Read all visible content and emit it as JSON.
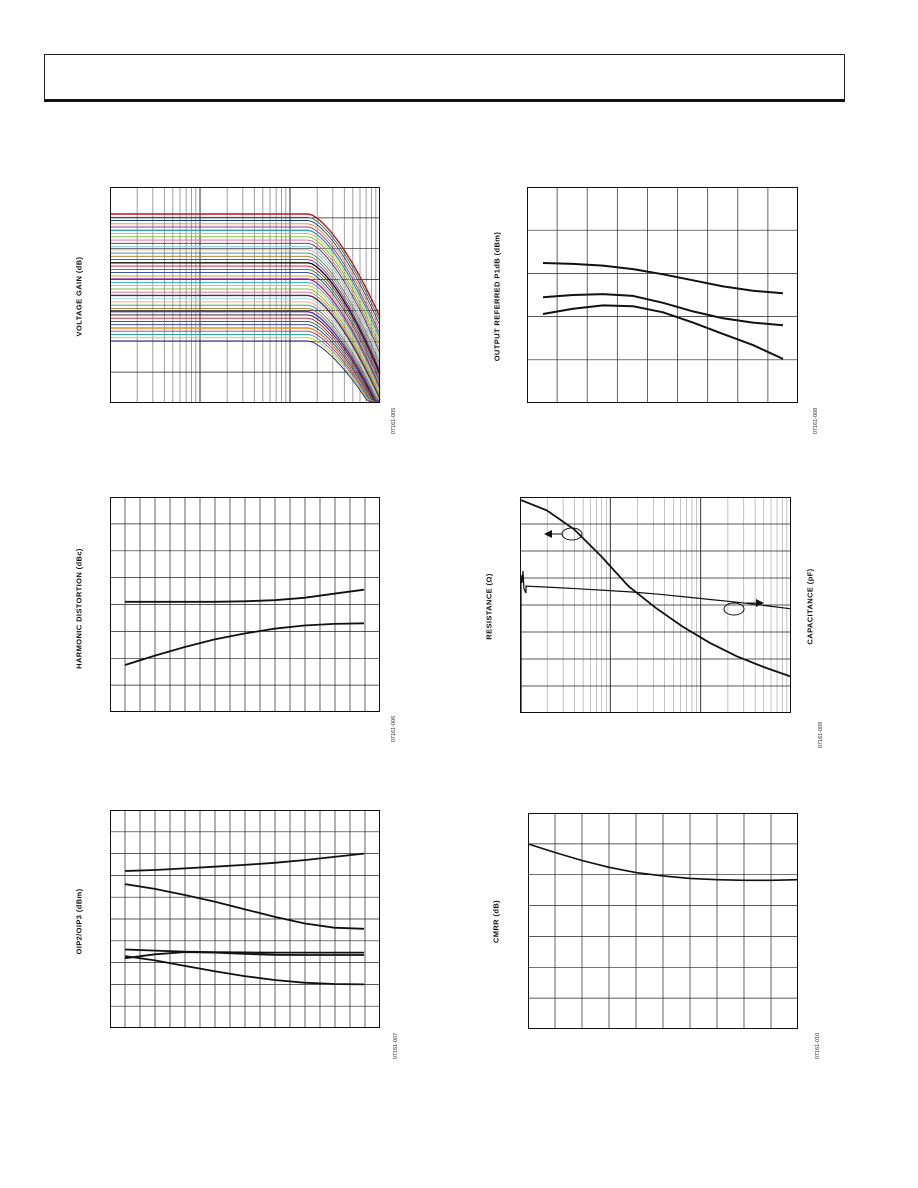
{
  "header": {
    "text": ""
  },
  "colors": {
    "ink": "#111111",
    "grid": "#222222",
    "minor_grid": "#888888"
  },
  "panels": {
    "voltage_gain": {
      "ylabel": "VOLTAGE GAIN (dB)",
      "code": "07161-005"
    },
    "p1db": {
      "ylabel": "OUTPUT REFERRED P1dB (dBm)",
      "code": "07161-008"
    },
    "hd": {
      "ylabel": "HARMONIC DISTORTION (dBc)",
      "code": "07161-006"
    },
    "res_cap": {
      "ylabel": "RESISTANCE (Ω)",
      "ylabel_right": "CAPACITANCE (pF)",
      "code": "07161-009"
    },
    "oip": {
      "ylabel": "OIP2/OIP3 (dBm)",
      "code": "07161-007"
    },
    "cmrr": {
      "ylabel": "CMRR (dB)",
      "code": "07161-010"
    }
  },
  "chart_data": [
    {
      "id": "voltage_gain",
      "type": "line",
      "title": "",
      "xlabel": "",
      "ylabel": "VOLTAGE GAIN (dB)",
      "x_scale": "log",
      "grid": true,
      "series_count": 40,
      "series_top_level": 1.0,
      "series_bottom_level": 0.0,
      "rolloff_start": 0.74,
      "note": "family of gain curves, flat then rolling off at high frequency"
    },
    {
      "id": "p1db",
      "type": "line",
      "ylabel": "OUTPUT REFERRED P1dB (dBm)",
      "grid": true,
      "x": [
        0,
        1,
        2,
        3,
        4,
        5,
        6,
        7,
        8
      ],
      "series": [
        {
          "values": [
            3.24,
            3.22,
            3.18,
            3.1,
            2.98,
            2.84,
            2.7,
            2.6,
            2.54
          ]
        },
        {
          "values": [
            2.45,
            2.5,
            2.52,
            2.48,
            2.32,
            2.12,
            1.96,
            1.86,
            1.8
          ]
        },
        {
          "values": [
            2.06,
            2.18,
            2.26,
            2.24,
            2.1,
            1.86,
            1.6,
            1.34,
            1.02
          ]
        }
      ],
      "ylim": [
        0,
        5
      ]
    },
    {
      "id": "hd",
      "type": "line",
      "ylabel": "HARMONIC DISTORTION (dBc)",
      "grid": true,
      "x": [
        0,
        1,
        2,
        3,
        4,
        5,
        6,
        7,
        8
      ],
      "series": [
        {
          "values": [
            4.1,
            4.1,
            4.1,
            4.1,
            4.12,
            4.16,
            4.25,
            4.4,
            4.55
          ]
        },
        {
          "values": [
            1.75,
            2.1,
            2.42,
            2.7,
            2.92,
            3.1,
            3.22,
            3.28,
            3.3
          ]
        }
      ],
      "ylim": [
        0,
        8
      ]
    },
    {
      "id": "res_cap",
      "type": "line",
      "ylabel": "RESISTANCE (Ω)",
      "y2label": "CAPACITANCE (pF)",
      "grid": true,
      "x_scale": "log",
      "series": [
        {
          "name_axis": "left",
          "values": [
            7.9,
            7.5,
            6.8,
            5.8,
            4.7,
            3.9,
            3.2,
            2.6,
            2.1,
            1.7,
            1.35
          ]
        },
        {
          "name_axis": "right",
          "values": [
            4.7,
            4.65,
            4.6,
            4.54,
            4.48,
            4.4,
            4.3,
            4.2,
            4.1,
            3.98,
            3.86
          ]
        }
      ],
      "ylim": [
        0,
        8
      ]
    },
    {
      "id": "oip",
      "type": "line",
      "ylabel": "OIP2/OIP3 (dBm)",
      "grid": true,
      "x": [
        0,
        1,
        2,
        3,
        4,
        5,
        6,
        7,
        8
      ],
      "series": [
        {
          "values": [
            7.2,
            7.25,
            7.32,
            7.4,
            7.48,
            7.58,
            7.7,
            7.85,
            8.0
          ]
        },
        {
          "values": [
            6.6,
            6.38,
            6.1,
            5.8,
            5.45,
            5.1,
            4.8,
            4.6,
            4.55
          ]
        },
        {
          "values": [
            3.6,
            3.55,
            3.5,
            3.48,
            3.47,
            3.46,
            3.46,
            3.46,
            3.46
          ]
        },
        {
          "values": [
            3.2,
            3.38,
            3.48,
            3.46,
            3.4,
            3.36,
            3.35,
            3.35,
            3.35
          ]
        },
        {
          "values": [
            3.3,
            3.1,
            2.85,
            2.6,
            2.38,
            2.2,
            2.08,
            2.02,
            2.0
          ]
        }
      ],
      "ylim": [
        0,
        10
      ]
    },
    {
      "id": "cmrr",
      "type": "line",
      "ylabel": "CMRR (dB)",
      "grid": true,
      "x": [
        0,
        1,
        2,
        3,
        4,
        5,
        6,
        7,
        8,
        9,
        10
      ],
      "series": [
        {
          "values": [
            6.0,
            5.72,
            5.46,
            5.24,
            5.07,
            4.96,
            4.88,
            4.84,
            4.82,
            4.82,
            4.84
          ]
        }
      ],
      "ylim": [
        0,
        7
      ]
    }
  ]
}
